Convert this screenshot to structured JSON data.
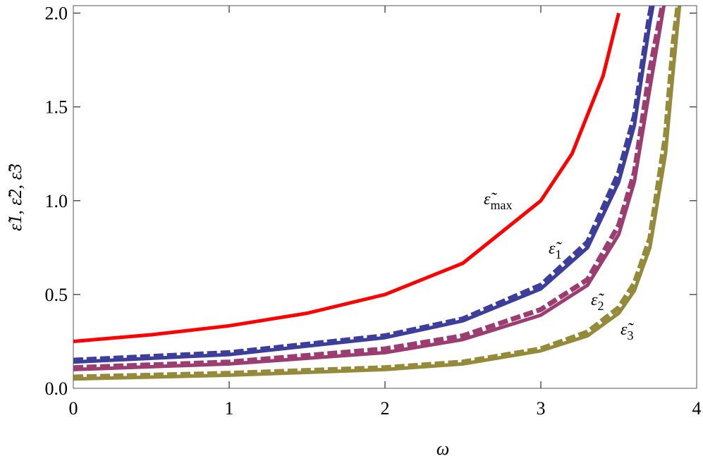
{
  "chart_data": {
    "type": "line",
    "xlabel": "ω",
    "ylabel": "ε̃1, ε̃2, ε̃3",
    "xlim": [
      0,
      4
    ],
    "ylim": [
      0,
      2.04
    ],
    "xticks": [
      0,
      1,
      2,
      3,
      4
    ],
    "yticks": [
      {
        "value": 0,
        "label": "0.0"
      },
      0.5,
      {
        "value": 1,
        "label": "1.0"
      },
      1.5,
      {
        "value": 2,
        "label": "2.0"
      }
    ],
    "series": [
      {
        "color": "#ff0000",
        "dashed": false,
        "x": [
          0,
          0.5,
          1,
          1.5,
          2,
          2.5,
          3,
          3.2,
          3.4,
          3.5
        ],
        "values": [
          0.25,
          0.2857,
          0.3333,
          0.4,
          0.5,
          0.6667,
          1.0,
          1.25,
          1.6667,
          2.0
        ]
      },
      {
        "color": "#3d3d9c",
        "dashed": false,
        "x": [
          0,
          1,
          2,
          2.5,
          3,
          3.3,
          3.5,
          3.6,
          3.7,
          3.72
        ],
        "values": [
          0.14,
          0.18,
          0.27,
          0.36,
          0.53,
          0.75,
          1.1,
          1.4,
          1.95,
          2.04
        ]
      },
      {
        "color": "#3d3d9c",
        "dashed": true,
        "x": [
          0,
          1,
          2,
          2.5,
          3,
          3.3,
          3.5,
          3.6,
          3.69,
          3.71
        ],
        "values": [
          0.15,
          0.19,
          0.28,
          0.37,
          0.55,
          0.78,
          1.15,
          1.45,
          1.95,
          2.04
        ]
      },
      {
        "color": "#9c3d72",
        "dashed": false,
        "x": [
          0,
          1,
          2,
          2.5,
          3,
          3.3,
          3.5,
          3.6,
          3.7,
          3.79
        ],
        "values": [
          0.1,
          0.13,
          0.19,
          0.26,
          0.39,
          0.55,
          0.82,
          1.1,
          1.6,
          2.04
        ]
      },
      {
        "color": "#9c3d72",
        "dashed": true,
        "x": [
          0,
          1,
          2,
          2.5,
          3,
          3.3,
          3.5,
          3.6,
          3.7,
          3.78
        ],
        "values": [
          0.11,
          0.14,
          0.21,
          0.28,
          0.42,
          0.58,
          0.87,
          1.15,
          1.7,
          2.04
        ]
      },
      {
        "color": "#948a3a",
        "dashed": false,
        "x": [
          0,
          1,
          2,
          2.5,
          3,
          3.3,
          3.5,
          3.6,
          3.7,
          3.8,
          3.85,
          3.89
        ],
        "values": [
          0.05,
          0.07,
          0.1,
          0.13,
          0.2,
          0.28,
          0.4,
          0.52,
          0.75,
          1.25,
          1.7,
          2.04
        ]
      },
      {
        "color": "#948a3a",
        "dashed": true,
        "x": [
          0,
          1,
          2,
          2.5,
          3,
          3.3,
          3.5,
          3.6,
          3.7,
          3.8,
          3.85,
          3.88
        ],
        "values": [
          0.06,
          0.08,
          0.11,
          0.14,
          0.21,
          0.3,
          0.43,
          0.56,
          0.8,
          1.35,
          1.85,
          2.04
        ]
      }
    ],
    "annotations": [
      {
        "symbol": "ε̃",
        "subscript": "max"
      },
      {
        "symbol": "ε̃",
        "subscript": "1"
      },
      {
        "symbol": "ε̃",
        "subscript": "2"
      },
      {
        "symbol": "ε̃",
        "subscript": "3"
      }
    ]
  }
}
